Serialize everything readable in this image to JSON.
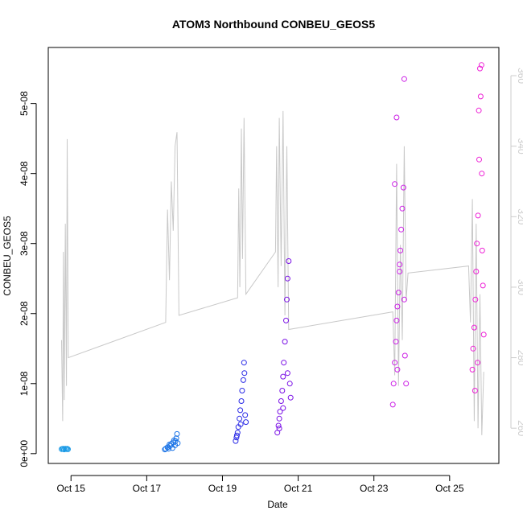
{
  "chart_data": {
    "type": "scatter",
    "title": "ATOM3 Northbound CONBEU_GEOS5",
    "xlabel": "Date",
    "ylabel": "CONBEU_GEOS5",
    "x_unit": "days of October",
    "xlim": [
      14.4,
      26.3
    ],
    "ylim": [
      -1.4e-09,
      5.8e-08
    ],
    "y2lim": [
      250,
      368
    ],
    "x_ticks": [
      {
        "value": 15,
        "label": "Oct 15"
      },
      {
        "value": 17,
        "label": "Oct 17"
      },
      {
        "value": 19,
        "label": "Oct 19"
      },
      {
        "value": 21,
        "label": "Oct 21"
      },
      {
        "value": 23,
        "label": "Oct 23"
      },
      {
        "value": 25,
        "label": "Oct 25"
      }
    ],
    "y_ticks": [
      {
        "value": 0,
        "label": "0e+00"
      },
      {
        "value": 1e-08,
        "label": "1e-08"
      },
      {
        "value": 2e-08,
        "label": "2e-08"
      },
      {
        "value": 3e-08,
        "label": "3e-08"
      },
      {
        "value": 4e-08,
        "label": "4e-08"
      },
      {
        "value": 5e-08,
        "label": "5e-08"
      }
    ],
    "y2_ticks": [
      {
        "value": 260,
        "label": "260"
      },
      {
        "value": 280,
        "label": "280"
      },
      {
        "value": 300,
        "label": "300"
      },
      {
        "value": 320,
        "label": "320"
      },
      {
        "value": 340,
        "label": "340"
      },
      {
        "value": 360,
        "label": "360"
      }
    ],
    "grid": false,
    "colors": {
      "line": "#c8c8c8",
      "y2_axis": "#cccccc",
      "axis": "#000000"
    },
    "scatter_groups": [
      {
        "color": "#1a9ae6",
        "points": [
          [
            14.75,
            6.5e-10
          ],
          [
            14.8,
            7e-10
          ],
          [
            14.82,
            6e-10
          ],
          [
            14.85,
            7e-10
          ],
          [
            14.88,
            6.5e-10
          ],
          [
            14.9,
            7e-10
          ],
          [
            14.78,
            6.8e-10
          ],
          [
            14.92,
            6.2e-10
          ]
        ]
      },
      {
        "color": "#1a73e6",
        "points": [
          [
            17.48,
            6e-10
          ],
          [
            17.5,
            7e-10
          ],
          [
            17.55,
            9e-10
          ],
          [
            17.58,
            7e-10
          ],
          [
            17.62,
            1.1e-09
          ],
          [
            17.65,
            1.4e-09
          ],
          [
            17.68,
            8e-10
          ],
          [
            17.7,
            1.6e-09
          ],
          [
            17.72,
            1.9e-09
          ],
          [
            17.75,
            1.2e-09
          ],
          [
            17.78,
            2.2e-09
          ],
          [
            17.8,
            2.8e-09
          ],
          [
            17.82,
            1.5e-09
          ],
          [
            17.6,
            1.3e-09
          ],
          [
            17.76,
            1.8e-09
          ]
        ]
      },
      {
        "color": "#2a2ae6",
        "points": [
          [
            19.35,
            1.8e-09
          ],
          [
            19.37,
            2.3e-09
          ],
          [
            19.4,
            3e-09
          ],
          [
            19.42,
            3.8e-09
          ],
          [
            19.45,
            5e-09
          ],
          [
            19.47,
            6.2e-09
          ],
          [
            19.5,
            7.5e-09
          ],
          [
            19.52,
            9e-09
          ],
          [
            19.55,
            1.05e-08
          ],
          [
            19.57,
            1.3e-08
          ],
          [
            19.6,
            5.5e-09
          ],
          [
            19.62,
            4.5e-09
          ],
          [
            19.38,
            2.6e-09
          ],
          [
            19.48,
            4.2e-09
          ],
          [
            19.58,
            1.15e-08
          ]
        ]
      },
      {
        "color": "#7a10e6",
        "points": [
          [
            20.45,
            3e-09
          ],
          [
            20.48,
            4e-09
          ],
          [
            20.5,
            5e-09
          ],
          [
            20.52,
            6e-09
          ],
          [
            20.55,
            7.5e-09
          ],
          [
            20.58,
            9e-09
          ],
          [
            20.6,
            1.1e-08
          ],
          [
            20.62,
            1.3e-08
          ],
          [
            20.65,
            1.6e-08
          ],
          [
            20.68,
            1.9e-08
          ],
          [
            20.7,
            2.2e-08
          ],
          [
            20.72,
            2.5e-08
          ],
          [
            20.75,
            2.75e-08
          ],
          [
            20.78,
            1e-08
          ],
          [
            20.8,
            8e-09
          ],
          [
            20.5,
            3.6e-09
          ],
          [
            20.6,
            6.5e-09
          ],
          [
            20.72,
            1.15e-08
          ]
        ]
      },
      {
        "color": "#cc20e6",
        "points": [
          [
            23.5,
            7e-09
          ],
          [
            23.52,
            1e-08
          ],
          [
            23.55,
            1.3e-08
          ],
          [
            23.58,
            1.6e-08
          ],
          [
            23.6,
            1.9e-08
          ],
          [
            23.62,
            2.1e-08
          ],
          [
            23.65,
            2.3e-08
          ],
          [
            23.68,
            2.6e-08
          ],
          [
            23.7,
            2.9e-08
          ],
          [
            23.72,
            3.2e-08
          ],
          [
            23.75,
            3.5e-08
          ],
          [
            23.78,
            3.8e-08
          ],
          [
            23.8,
            2.2e-08
          ],
          [
            23.82,
            1.4e-08
          ],
          [
            23.85,
            1e-08
          ],
          [
            23.6,
            4.8e-08
          ],
          [
            23.8,
            5.35e-08
          ],
          [
            23.55,
            3.85e-08
          ],
          [
            23.68,
            2.7e-08
          ],
          [
            23.62,
            1.2e-08
          ]
        ]
      },
      {
        "color": "#ee20d6",
        "points": [
          [
            25.6,
            1.2e-08
          ],
          [
            25.62,
            1.5e-08
          ],
          [
            25.65,
            1.8e-08
          ],
          [
            25.68,
            2.2e-08
          ],
          [
            25.7,
            2.6e-08
          ],
          [
            25.72,
            3e-08
          ],
          [
            25.75,
            3.4e-08
          ],
          [
            25.78,
            4.2e-08
          ],
          [
            25.8,
            5.5e-08
          ],
          [
            25.82,
            5.1e-08
          ],
          [
            25.85,
            4e-08
          ],
          [
            25.88,
            2.4e-08
          ],
          [
            25.9,
            1.7e-08
          ],
          [
            25.67,
            9e-09
          ],
          [
            25.74,
            1.3e-08
          ],
          [
            25.86,
            2.9e-08
          ],
          [
            25.77,
            4.9e-08
          ],
          [
            25.84,
            5.55e-08
          ]
        ]
      }
    ],
    "line_series": {
      "axis": "right",
      "points": [
        [
          14.75,
          285
        ],
        [
          14.78,
          262
        ],
        [
          14.8,
          310
        ],
        [
          14.82,
          268
        ],
        [
          14.85,
          318
        ],
        [
          14.88,
          272
        ],
        [
          14.9,
          342
        ],
        [
          14.93,
          280
        ],
        [
          17.5,
          290
        ],
        [
          17.55,
          322
        ],
        [
          17.6,
          302
        ],
        [
          17.65,
          330
        ],
        [
          17.7,
          316
        ],
        [
          17.75,
          340
        ],
        [
          17.8,
          344
        ],
        [
          17.85,
          292
        ],
        [
          19.4,
          297
        ],
        [
          19.43,
          328
        ],
        [
          19.46,
          300
        ],
        [
          19.5,
          345
        ],
        [
          19.53,
          308
        ],
        [
          19.57,
          348
        ],
        [
          19.62,
          298
        ],
        [
          20.4,
          310
        ],
        [
          20.43,
          340
        ],
        [
          20.47,
          300
        ],
        [
          20.5,
          348
        ],
        [
          20.55,
          306
        ],
        [
          20.6,
          350
        ],
        [
          20.65,
          292
        ],
        [
          20.7,
          340
        ],
        [
          20.75,
          288
        ],
        [
          23.5,
          293
        ],
        [
          23.55,
          275
        ],
        [
          23.6,
          335
        ],
        [
          23.65,
          272
        ],
        [
          23.7,
          312
        ],
        [
          23.75,
          285
        ],
        [
          23.8,
          340
        ],
        [
          23.85,
          296
        ],
        [
          23.9,
          304
        ],
        [
          25.5,
          306
        ],
        [
          25.55,
          290
        ],
        [
          25.6,
          325
        ],
        [
          25.65,
          262
        ],
        [
          25.7,
          318
        ],
        [
          25.75,
          260
        ],
        [
          25.8,
          298
        ],
        [
          25.85,
          258
        ],
        [
          25.9,
          276
        ]
      ]
    }
  }
}
